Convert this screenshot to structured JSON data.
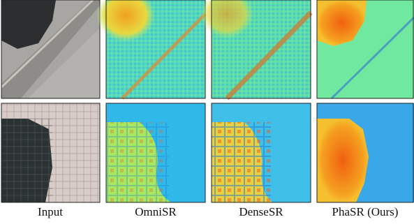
{
  "captions": [
    "Input",
    "OmniSR",
    "DenseSR",
    "PhaSR (Ours)"
  ]
}
